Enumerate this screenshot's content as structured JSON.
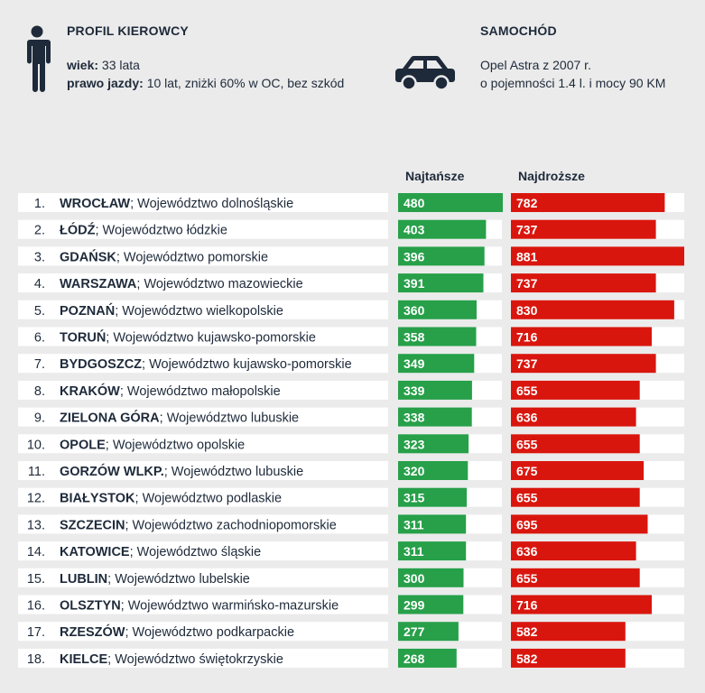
{
  "driver": {
    "title": "PROFIL KIEROWCY",
    "age_label": "wiek:",
    "age_value": "33 lata",
    "license_label": "prawo jazdy:",
    "license_value": "10 lat, zniżki 60% w OC, bez szkód",
    "icon": "person-icon"
  },
  "car": {
    "title": "SAMOCHÓD",
    "line1": "Opel Astra z 2007 r.",
    "line2": "o pojemności 1.4 l. i mocy 90 KM",
    "icon": "car-icon"
  },
  "colors": {
    "cheapest": "#27a049",
    "most_expensive": "#d9160e",
    "dark": "#1e2a3a"
  },
  "chart_data": {
    "type": "bar",
    "series": [
      {
        "name": "Najtańsze",
        "values": [
          480,
          403,
          396,
          391,
          360,
          358,
          349,
          339,
          338,
          323,
          320,
          315,
          311,
          311,
          300,
          299,
          277,
          268
        ]
      },
      {
        "name": "Najdroższe",
        "values": [
          782,
          737,
          881,
          737,
          830,
          716,
          737,
          655,
          636,
          655,
          675,
          655,
          695,
          636,
          655,
          716,
          582,
          582
        ]
      }
    ],
    "rows": [
      {
        "rank": "1.",
        "city": "WROCŁAW",
        "region": "; Województwo dolnośląskie"
      },
      {
        "rank": "2.",
        "city": "ŁÓDŹ",
        "region": "; Województwo łódzkie"
      },
      {
        "rank": "3.",
        "city": "GDAŃSK",
        "region": "; Województwo pomorskie"
      },
      {
        "rank": "4.",
        "city": "WARSZAWA",
        "region": "; Województwo mazowieckie"
      },
      {
        "rank": "5.",
        "city": "POZNAŃ",
        "region": "; Województwo wielkopolskie"
      },
      {
        "rank": "6.",
        "city": "TORUŃ",
        "region": "; Województwo kujawsko-pomorskie"
      },
      {
        "rank": "7.",
        "city": "BYDGOSZCZ",
        "region": "; Województwo kujawsko-pomorskie"
      },
      {
        "rank": "8.",
        "city": "KRAKÓW",
        "region": "; Województwo małopolskie"
      },
      {
        "rank": "9.",
        "city": "ZIELONA GÓRA",
        "region": "; Województwo lubuskie"
      },
      {
        "rank": "10.",
        "city": "OPOLE",
        "region": "; Województwo opolskie"
      },
      {
        "rank": "11.",
        "city": "GORZÓW WLKP.",
        "region": "; Województwo lubuskie"
      },
      {
        "rank": "12.",
        "city": "BIAŁYSTOK",
        "region": "; Województwo podlaskie"
      },
      {
        "rank": "13.",
        "city": "SZCZECIN",
        "region": "; Województwo zachodniopomorskie"
      },
      {
        "rank": "14.",
        "city": "KATOWICE",
        "region": "; Województwo śląskie"
      },
      {
        "rank": "15.",
        "city": "LUBLIN",
        "region": "; Województwo lubelskie"
      },
      {
        "rank": "16.",
        "city": "OLSZTYN",
        "region": "; Województwo warmińsko-mazurskie"
      },
      {
        "rank": "17.",
        "city": "RZESZÓW",
        "region": "; Województwo podkarpackie"
      },
      {
        "rank": "18.",
        "city": "KIELCE",
        "region": "; Województwo świętokrzyskie"
      }
    ]
  }
}
